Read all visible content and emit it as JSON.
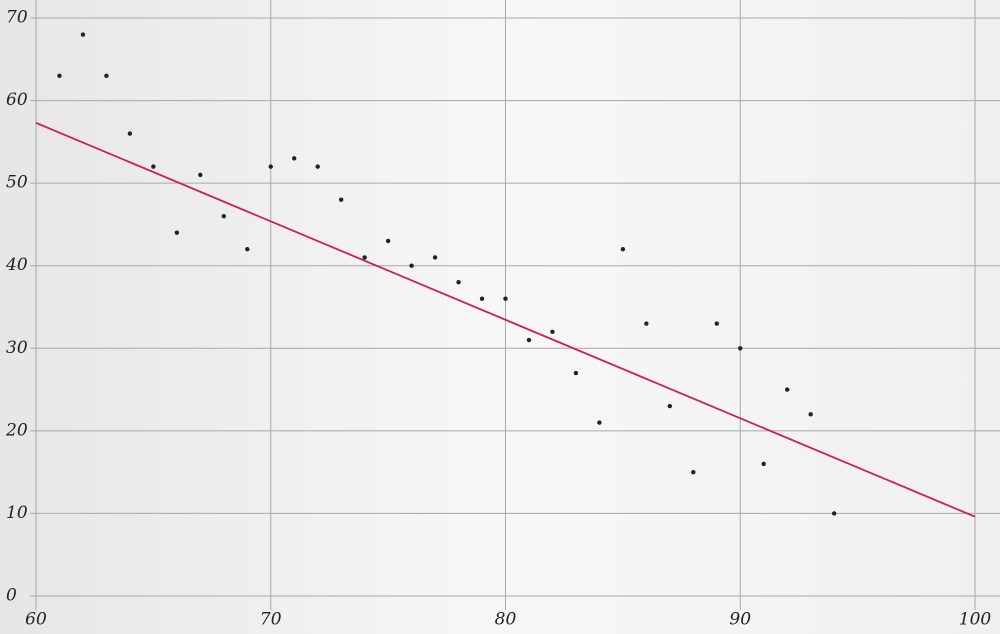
{
  "chart_data": {
    "type": "scatter",
    "x": [
      61,
      62,
      63,
      64,
      65,
      66,
      67,
      68,
      69,
      70,
      71,
      72,
      73,
      74,
      75,
      76,
      77,
      78,
      79,
      80,
      81,
      82,
      83,
      84,
      85,
      86,
      87,
      88,
      89,
      90,
      91,
      92,
      93,
      94
    ],
    "values": [
      63,
      68,
      63,
      56,
      52,
      44,
      51,
      46,
      42,
      52,
      53,
      52,
      48,
      41,
      43,
      40,
      41,
      38,
      36,
      36,
      31,
      32,
      27,
      21,
      42,
      33,
      23,
      15,
      33,
      30,
      16,
      25,
      22,
      10
    ],
    "color": "#1a2233",
    "fit": {
      "x": [
        60,
        100
      ],
      "values": [
        57.3,
        9.6
      ],
      "color": "#d0204a"
    },
    "xlim": [
      60,
      100
    ],
    "xticks": [
      60,
      70,
      80,
      90,
      100
    ],
    "ylim": [
      0,
      70
    ],
    "yticks": [
      0,
      10,
      20,
      30,
      40,
      50,
      60,
      70
    ],
    "grid": true
  }
}
